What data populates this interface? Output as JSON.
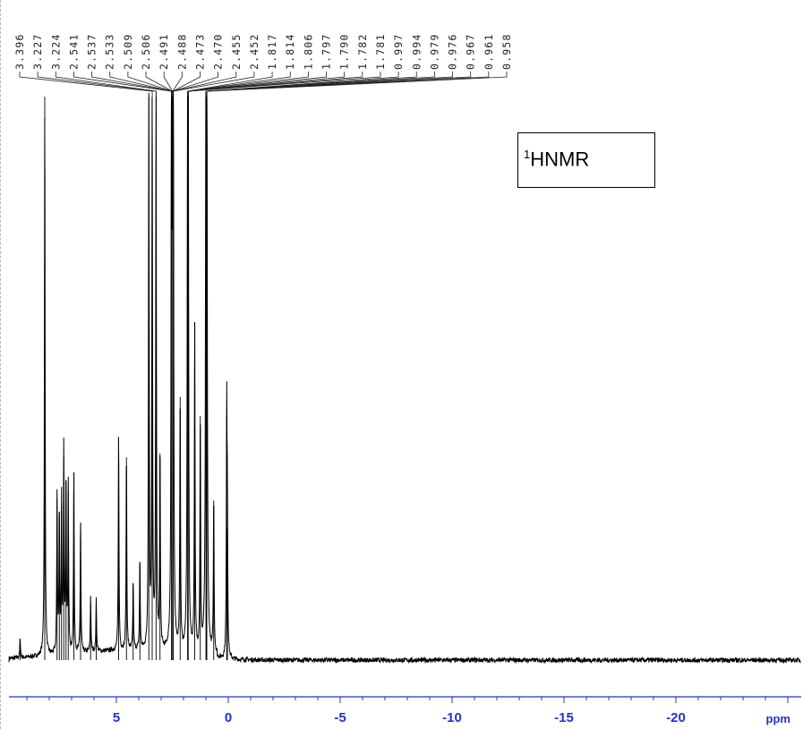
{
  "chart_data": {
    "type": "line",
    "title": "",
    "xlabel": "ppm",
    "ylabel": "",
    "xlim": [
      9.8,
      -25.6
    ],
    "x_reversed": true,
    "x_ticks": [
      5,
      0,
      -5,
      -10,
      -15,
      -20
    ],
    "x_tick_labels": [
      "5",
      "0",
      "-5",
      "-10",
      "-15",
      "-20"
    ],
    "grid": false,
    "legend": "none",
    "axis_color": "#2233cc",
    "line_color": "#000000",
    "annotation_box": {
      "superscript": "1",
      "text": "HNMR",
      "placement": "top-right"
    },
    "peak_labels": [
      "3.396",
      "3.227",
      "3.224",
      "2.541",
      "2.537",
      "2.533",
      "2.509",
      "2.506",
      "2.491",
      "2.488",
      "2.473",
      "2.470",
      "2.455",
      "2.452",
      "1.817",
      "1.814",
      "1.806",
      "1.797",
      "1.790",
      "1.782",
      "1.781",
      "0.997",
      "0.994",
      "0.979",
      "0.976",
      "0.967",
      "0.961",
      "0.958"
    ],
    "peaks": [
      {
        "x": 9.3,
        "y": 0.11
      },
      {
        "x": 8.2,
        "y": 3.0
      },
      {
        "x": 7.65,
        "y": 0.86
      },
      {
        "x": 7.55,
        "y": 0.76
      },
      {
        "x": 7.45,
        "y": 0.82
      },
      {
        "x": 7.35,
        "y": 1.08
      },
      {
        "x": 7.25,
        "y": 0.95
      },
      {
        "x": 7.15,
        "y": 0.9
      },
      {
        "x": 6.9,
        "y": 1.0
      },
      {
        "x": 6.6,
        "y": 0.72
      },
      {
        "x": 6.15,
        "y": 0.3
      },
      {
        "x": 5.9,
        "y": 0.28
      },
      {
        "x": 4.9,
        "y": 1.18
      },
      {
        "x": 4.55,
        "y": 1.08
      },
      {
        "x": 4.25,
        "y": 0.38
      },
      {
        "x": 3.95,
        "y": 0.5
      },
      {
        "x": 3.55,
        "y": 3.0
      },
      {
        "x": 3.4,
        "y": 3.0
      },
      {
        "x": 3.227,
        "y": 3.0
      },
      {
        "x": 3.05,
        "y": 1.1
      },
      {
        "x": 2.541,
        "y": 3.0
      },
      {
        "x": 2.49,
        "y": 3.0
      },
      {
        "x": 2.455,
        "y": 3.0
      },
      {
        "x": 2.15,
        "y": 1.4
      },
      {
        "x": 1.817,
        "y": 3.0
      },
      {
        "x": 1.79,
        "y": 3.0
      },
      {
        "x": 1.5,
        "y": 1.8
      },
      {
        "x": 1.25,
        "y": 1.3
      },
      {
        "x": 0.997,
        "y": 3.0
      },
      {
        "x": 0.976,
        "y": 3.0
      },
      {
        "x": 0.96,
        "y": 3.0
      },
      {
        "x": 0.65,
        "y": 0.85
      },
      {
        "x": 0.07,
        "y": 1.3
      },
      {
        "x": 0.04,
        "y": 0.7
      }
    ]
  }
}
